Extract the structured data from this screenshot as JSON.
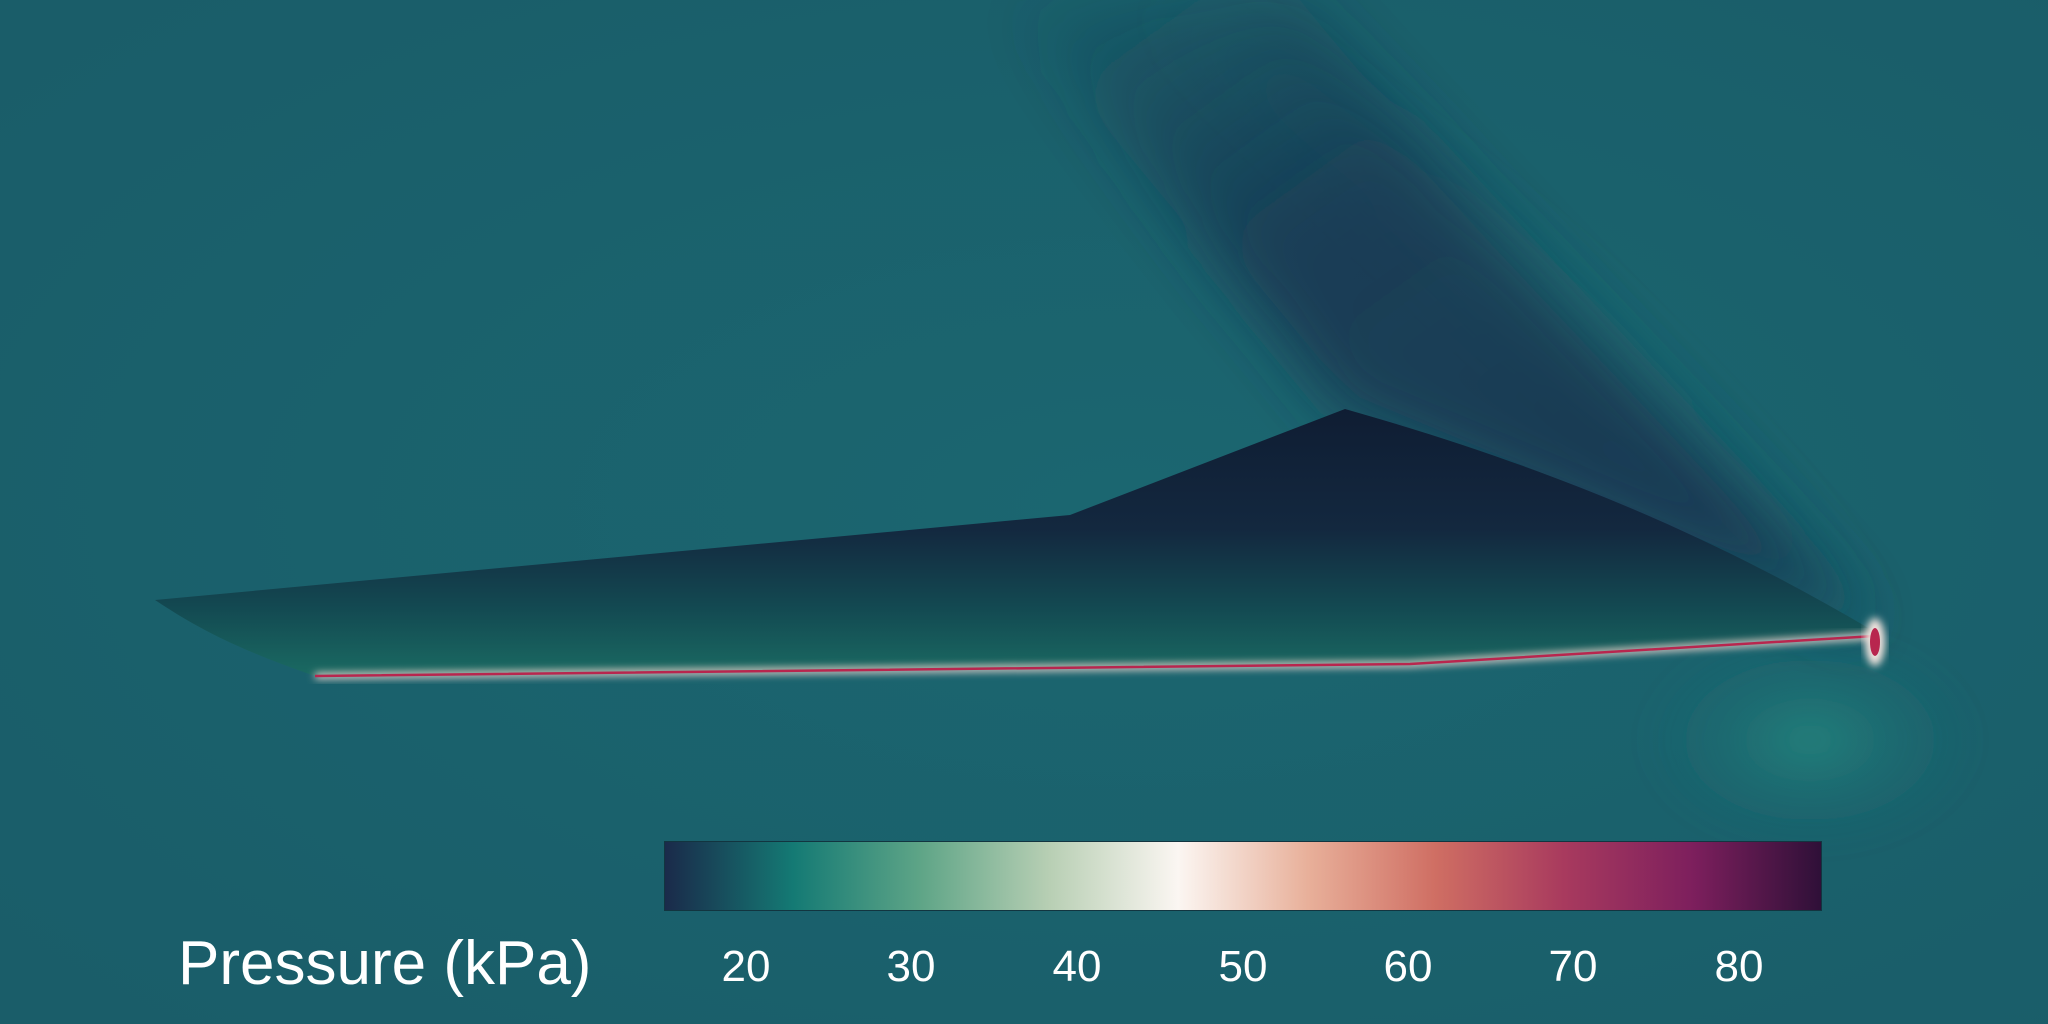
{
  "colorbar": {
    "label": "Pressure (kPa)",
    "ticks": [
      "20",
      "30",
      "40",
      "50",
      "60",
      "70",
      "80"
    ],
    "colormap": [
      "#1a2a4a",
      "#147a74",
      "#5fa587",
      "#b8cfb4",
      "#fbf6f2",
      "#e8b09a",
      "#cf6e63",
      "#a83a5e",
      "#7d1f5d",
      "#2f1038"
    ]
  },
  "colors": {
    "background": "#1a5f6a",
    "wing_dark": "#0f1e35",
    "shock_high": "#b8264e"
  }
}
